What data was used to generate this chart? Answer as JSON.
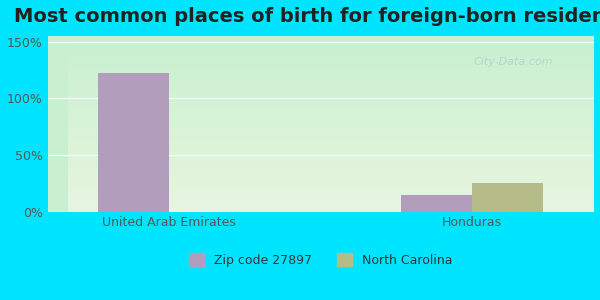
{
  "title": "Most common places of birth for foreign-born residents",
  "categories": [
    "United Arab Emirates",
    "Honduras"
  ],
  "zip_values": [
    122,
    15
  ],
  "state_values": [
    0,
    25
  ],
  "zip_color": "#b39dbd",
  "state_color": "#b5bc8a",
  "zip_label": "Zip code 27897",
  "state_label": "North Carolina",
  "yticks": [
    0,
    50,
    100,
    150
  ],
  "ytick_labels": [
    "0%",
    "50%",
    "100%",
    "150%"
  ],
  "ylim": [
    0,
    155
  ],
  "bar_width": 0.35,
  "bg_color_top": "#c8f0d0",
  "bg_color_bottom": "#e8f5e0",
  "outer_bg": "#00e5ff",
  "title_fontsize": 14,
  "axis_label_fontsize": 9,
  "legend_fontsize": 9
}
